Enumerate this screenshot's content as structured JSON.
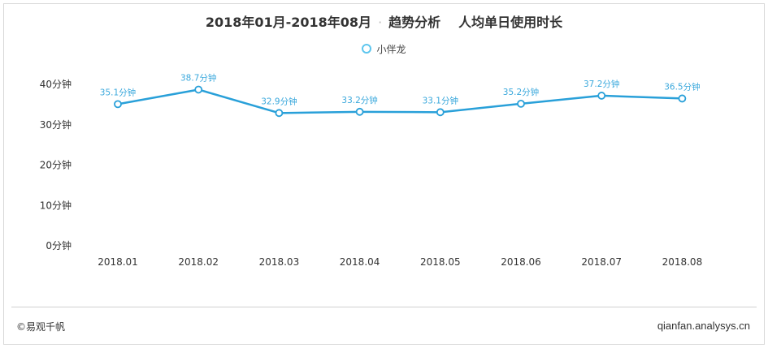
{
  "header": {
    "period": "2018年01月-2018年08月",
    "separator": "·",
    "section": "趋势分析",
    "metric": "人均单日使用时长"
  },
  "footer": {
    "source": "©易观千帆",
    "site": "qianfan.analysys.cn"
  },
  "colors": {
    "line": "#29a0d9",
    "label": "#3aa8dc",
    "axis_text": "#333333"
  },
  "chart_data": {
    "type": "line",
    "categories": [
      "2018.01",
      "2018.02",
      "2018.03",
      "2018.04",
      "2018.05",
      "2018.06",
      "2018.07",
      "2018.08"
    ],
    "series": [
      {
        "name": "小伴龙",
        "values": [
          35.1,
          38.7,
          32.9,
          33.2,
          33.1,
          35.2,
          37.2,
          36.5
        ],
        "labels": [
          "35.1分钟",
          "38.7分钟",
          "32.9分钟",
          "33.2分钟",
          "33.1分钟",
          "35.2分钟",
          "37.2分钟",
          "36.5分钟"
        ]
      }
    ],
    "yticks": [
      "0分钟",
      "10分钟",
      "20分钟",
      "30分钟",
      "40分钟"
    ],
    "ylim": [
      0,
      40
    ],
    "grid": false,
    "legend": "top-center"
  }
}
